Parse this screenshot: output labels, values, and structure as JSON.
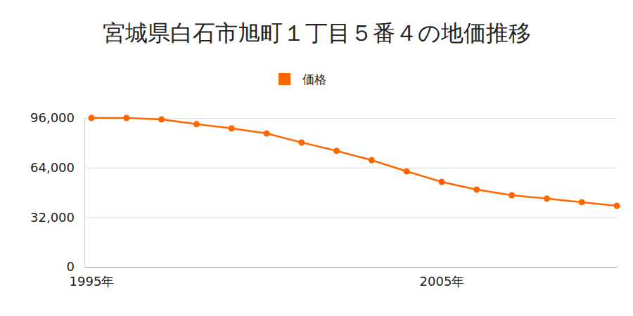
{
  "chart_data": {
    "type": "line",
    "title": "宮城県白石市旭町１丁目５番４の地価推移",
    "x": [
      1995,
      1996,
      1997,
      1998,
      1999,
      2000,
      2001,
      2002,
      2003,
      2004,
      2005,
      2006,
      2007,
      2008,
      2009,
      2010
    ],
    "series": [
      {
        "name": "価格",
        "color": "#ff6600",
        "marker": "circle",
        "values": [
          96000,
          96000,
          95100,
          92000,
          89300,
          86000,
          80200,
          74800,
          68800,
          61600,
          54800,
          49800,
          46200,
          44000,
          41700,
          39400
        ]
      }
    ],
    "xlim": [
      1995,
      2010
    ],
    "xticks": [
      {
        "value": 1995,
        "label": "1995年"
      },
      {
        "value": 2005,
        "label": "2005年"
      }
    ],
    "ylim": [
      0,
      96000
    ],
    "yticks": [
      {
        "value": 0,
        "label": "0"
      },
      {
        "value": 32000,
        "label": "32,000"
      },
      {
        "value": 64000,
        "label": "64,000"
      },
      {
        "value": 96000,
        "label": "96,000"
      }
    ],
    "grid": true,
    "legend": "top"
  }
}
